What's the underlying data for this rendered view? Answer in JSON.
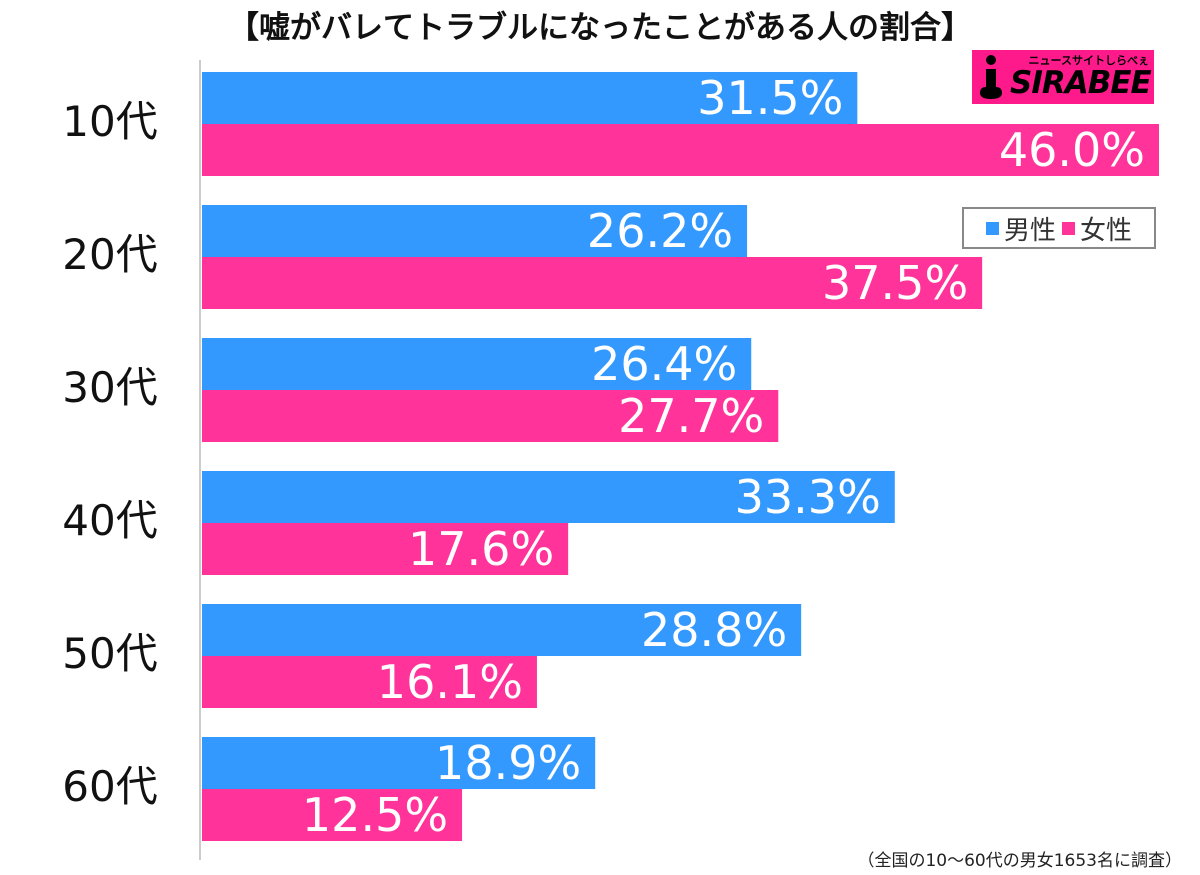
{
  "chart_data": {
    "type": "bar",
    "orientation": "horizontal",
    "title": "【嘘がバレてトラブルになったことがある人の割合】",
    "categories": [
      "10代",
      "20代",
      "30代",
      "40代",
      "50代",
      "60代"
    ],
    "series": [
      {
        "name": "男性",
        "color": "#3399ff",
        "values": [
          31.5,
          26.2,
          26.4,
          33.3,
          28.8,
          18.9
        ]
      },
      {
        "name": "女性",
        "color": "#ff3399",
        "values": [
          46.0,
          37.5,
          27.7,
          17.6,
          16.1,
          12.5
        ]
      }
    ],
    "value_suffix": "%",
    "xlim": [
      0,
      46
    ],
    "grid": false,
    "legend_position": "right"
  },
  "footnote": "（全国の10〜60代の男女1653名に調査）",
  "logo": {
    "name": "SIRABEE",
    "tagline": "ニュースサイトしらべぇ"
  }
}
